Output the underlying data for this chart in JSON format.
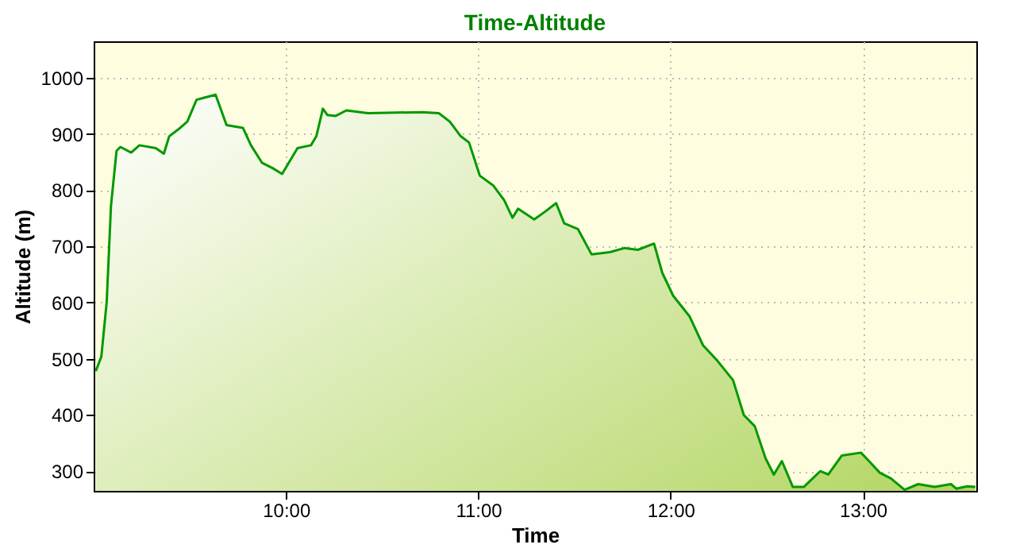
{
  "chart_data": {
    "type": "area",
    "title": "Time-Altitude",
    "xlabel": "Time",
    "ylabel": "Altitude (m)",
    "xlim": [
      9.0,
      13.59
    ],
    "ylim": [
      265,
      1065
    ],
    "xticks": [
      {
        "value": 10,
        "label": "10:00"
      },
      {
        "value": 11,
        "label": "11:00"
      },
      {
        "value": 12,
        "label": "12:00"
      },
      {
        "value": 13,
        "label": "13:00"
      }
    ],
    "yticks": [
      300,
      400,
      500,
      600,
      700,
      800,
      900,
      1000
    ],
    "grid": true,
    "line_style": "solid",
    "series": [
      {
        "color": "#009900",
        "x": [
          9.011,
          9.04,
          9.068,
          9.09,
          9.119,
          9.139,
          9.195,
          9.238,
          9.323,
          9.365,
          9.393,
          9.45,
          9.487,
          9.535,
          9.634,
          9.691,
          9.776,
          9.818,
          9.875,
          9.932,
          9.98,
          10.06,
          10.13,
          10.158,
          10.192,
          10.215,
          10.257,
          10.314,
          10.427,
          10.71,
          10.795,
          10.852,
          10.909,
          10.952,
          11.008,
          11.079,
          11.135,
          11.178,
          11.207,
          11.291,
          11.348,
          11.405,
          11.447,
          11.518,
          11.589,
          11.688,
          11.759,
          11.83,
          11.914,
          11.957,
          12.014,
          12.098,
          12.169,
          12.24,
          12.325,
          12.381,
          12.438,
          12.494,
          12.537,
          12.579,
          12.636,
          12.693,
          12.778,
          12.82,
          12.891,
          12.99,
          13.032,
          13.089,
          13.146,
          13.217,
          13.288,
          13.373,
          13.458,
          13.486,
          13.543,
          13.585
        ],
        "values": [
          478,
          504,
          602,
          772,
          870,
          877,
          867,
          880,
          875,
          865,
          896,
          911,
          922,
          961,
          970,
          916,
          911,
          880,
          849,
          839,
          829,
          875,
          880,
          896,
          945,
          934,
          932,
          942,
          937,
          939,
          937,
          922,
          896,
          885,
          826,
          808,
          782,
          751,
          767,
          748,
          762,
          777,
          741,
          731,
          686,
          690,
          697,
          694,
          705,
          653,
          612,
          576,
          524,
          498,
          462,
          400,
          380,
          323,
          294,
          318,
          272,
          272,
          300,
          294,
          328,
          333,
          318,
          297,
          287,
          267,
          277,
          272,
          277,
          269,
          273,
          272
        ]
      }
    ]
  }
}
